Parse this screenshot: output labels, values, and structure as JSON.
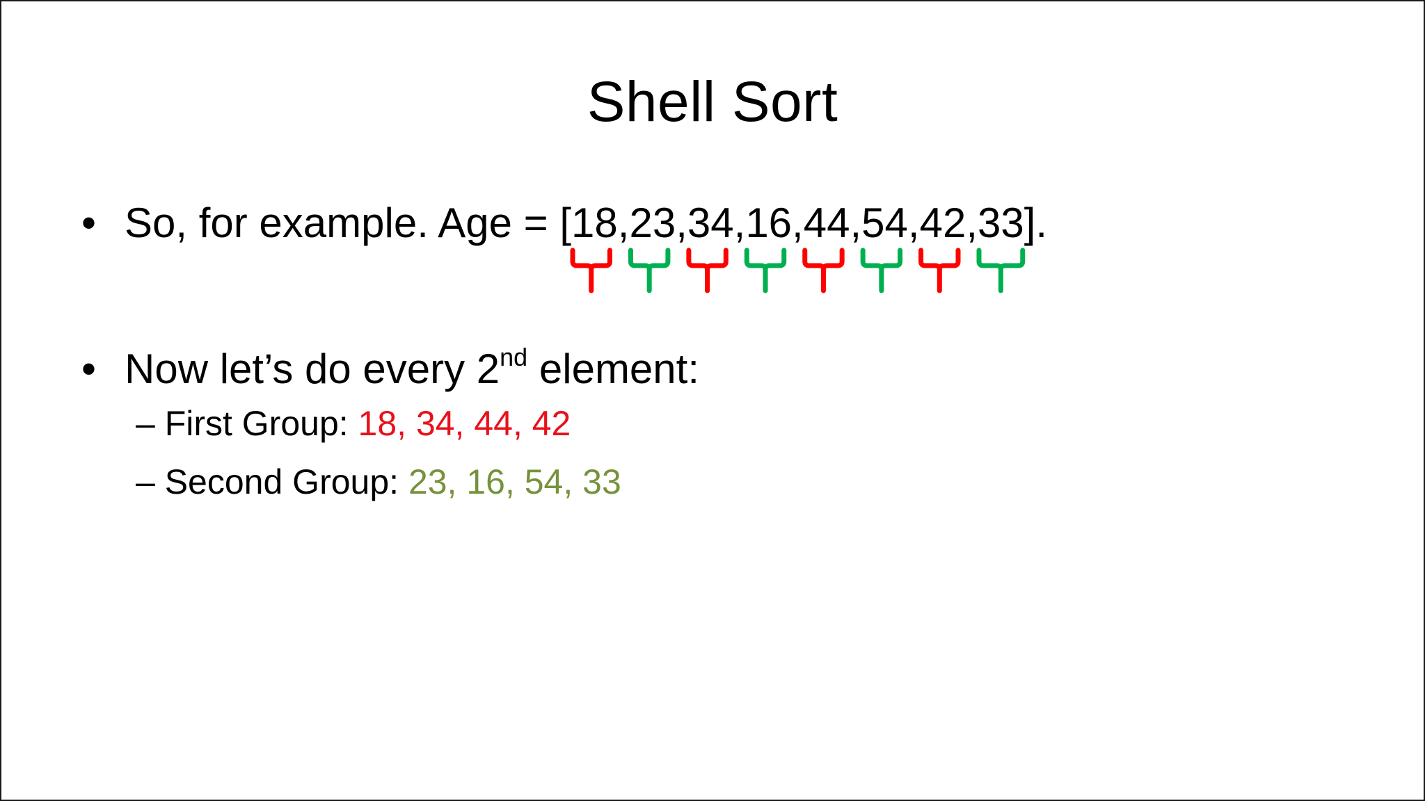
{
  "slide": {
    "title": "Shell Sort",
    "bullet1": {
      "marker": "•",
      "prefix": "So, for example. Age = [",
      "items": [
        "18, ",
        "23, ",
        "34, ",
        "16, ",
        "44, ",
        "54, ",
        "42, ",
        "33"
      ],
      "suffix": "]."
    },
    "bullet2": {
      "marker": "•",
      "text_before": "Now let’s do every 2",
      "superscript": "nd",
      "text_after": " element:"
    },
    "sub1": {
      "dash": "–",
      "label": " First Group: ",
      "values": "18, 34, 44, 42"
    },
    "sub2": {
      "dash": "–",
      "label": " Second Group: ",
      "values": "23, 16, 54, 33"
    },
    "braces": [
      {
        "group": "first",
        "color": "#ff0000"
      },
      {
        "group": "second",
        "color": "#00b050"
      },
      {
        "group": "first",
        "color": "#ff0000"
      },
      {
        "group": "second",
        "color": "#00b050"
      },
      {
        "group": "first",
        "color": "#ff0000"
      },
      {
        "group": "second",
        "color": "#00b050"
      },
      {
        "group": "first",
        "color": "#ff0000"
      },
      {
        "group": "second",
        "color": "#00b050"
      }
    ],
    "colors": {
      "first_group": "#e8111a",
      "second_group": "#76923c"
    }
  }
}
